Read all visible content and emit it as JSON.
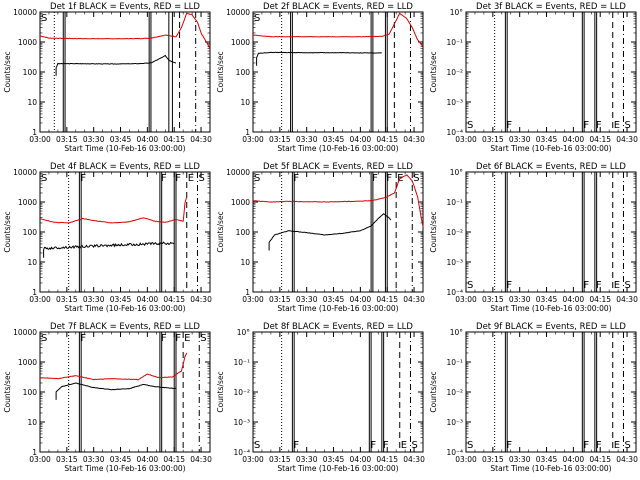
{
  "chart_data": {
    "type": "line",
    "xlabel": "Start Time (10-Feb-16 03:00:00)",
    "ylabel": "Counts/sec",
    "x_ticks": [
      "03:00",
      "03:15",
      "03:30",
      "03:45",
      "04:00",
      "04:15",
      "04:30"
    ],
    "x_range_minutes": [
      0,
      95
    ],
    "y_scale": "log",
    "active_y_ticks": [
      "1",
      "10",
      "100",
      "1000",
      "10000"
    ],
    "active_ylim": [
      1,
      10000
    ],
    "empty_y_ticks": [
      "10°",
      "10⁻¹",
      "10⁻²",
      "10⁻³",
      "10⁻⁴"
    ],
    "empty_ylim": [
      1,
      0.0001
    ],
    "series_colors": {
      "events": "#000000",
      "lld": "#dd0000"
    },
    "panels": [
      {
        "title": "Det 1f BLACK = Events, RED = LLD",
        "has_data": true,
        "markers": [
          {
            "t": 8,
            "style": "dotted"
          },
          {
            "t": 13,
            "style": "solid",
            "label": ""
          },
          {
            "t": 14,
            "style": "solid",
            "label": ""
          },
          {
            "t": 61,
            "style": "solid",
            "label": ""
          },
          {
            "t": 62,
            "style": "solid",
            "label": ""
          },
          {
            "t": 72,
            "style": "solid",
            "label": ""
          },
          {
            "t": 74,
            "style": "solid",
            "label": ""
          },
          {
            "t": 78,
            "style": "dashed",
            "label": ""
          },
          {
            "t": 87,
            "style": "dashdot",
            "label": ""
          }
        ],
        "corner_letter": "S",
        "events": {
          "start": 9,
          "end": 76,
          "level": 160,
          "segments": [
            [
              9,
              140
            ],
            [
              10,
              190
            ],
            [
              20,
              190
            ],
            [
              40,
              185
            ],
            [
              55,
              190
            ],
            [
              62,
              200
            ],
            [
              68,
              300
            ],
            [
              70,
              350
            ],
            [
              72,
              250
            ],
            [
              74,
              220
            ],
            [
              76,
              200
            ]
          ]
        },
        "lld": {
          "start": 0,
          "end": 95,
          "segments": [
            [
              0,
              1600
            ],
            [
              5,
              1350
            ],
            [
              20,
              1300
            ],
            [
              40,
              1280
            ],
            [
              55,
              1300
            ],
            [
              62,
              1350
            ],
            [
              70,
              1700
            ],
            [
              76,
              1500
            ],
            [
              79,
              3000
            ],
            [
              82,
              9000
            ],
            [
              85,
              8000
            ],
            [
              88,
              4500
            ],
            [
              90,
              2000
            ],
            [
              93,
              1000
            ],
            [
              95,
              600
            ]
          ]
        }
      },
      {
        "title": "Det 2f BLACK = Events, RED = LLD",
        "has_data": true,
        "markers": [
          {
            "t": 16,
            "style": "dotted"
          },
          {
            "t": 21,
            "style": "solid",
            "label": ""
          },
          {
            "t": 22,
            "style": "solid",
            "label": ""
          },
          {
            "t": 66,
            "style": "solid",
            "label": ""
          },
          {
            "t": 67,
            "style": "solid",
            "label": ""
          },
          {
            "t": 74,
            "style": "solid",
            "label": ""
          },
          {
            "t": 75,
            "style": "solid",
            "label": ""
          },
          {
            "t": 79,
            "style": "dashed",
            "label": ""
          },
          {
            "t": 88,
            "style": "dashdot",
            "label": ""
          }
        ],
        "corner_letter": "S",
        "events": {
          "start": 2,
          "end": 72,
          "segments": [
            [
              2,
              300
            ],
            [
              3,
              420
            ],
            [
              10,
              450
            ],
            [
              30,
              440
            ],
            [
              50,
              440
            ],
            [
              66,
              430
            ],
            [
              72,
              430
            ]
          ]
        },
        "lld": {
          "start": 0,
          "end": 95,
          "segments": [
            [
              0,
              1700
            ],
            [
              10,
              1500
            ],
            [
              40,
              1500
            ],
            [
              60,
              1500
            ],
            [
              72,
              1550
            ],
            [
              76,
              1800
            ],
            [
              79,
              4000
            ],
            [
              82,
              9000
            ],
            [
              86,
              6000
            ],
            [
              89,
              3000
            ],
            [
              92,
              1200
            ],
            [
              95,
              700
            ]
          ]
        }
      },
      {
        "title": "Det 3f BLACK = Events, RED = LLD",
        "has_data": false,
        "markers": [
          {
            "t": 16,
            "style": "dotted"
          },
          {
            "t": 22,
            "style": "solid",
            "label": "F"
          },
          {
            "t": 23,
            "style": "solid",
            "label": ""
          },
          {
            "t": 65,
            "style": "solid",
            "label": "F"
          },
          {
            "t": 66,
            "style": "solid",
            "label": ""
          },
          {
            "t": 72,
            "style": "solid",
            "label": "F"
          },
          {
            "t": 73,
            "style": "solid",
            "label": ""
          },
          {
            "t": 82,
            "style": "dashed",
            "label": "E"
          },
          {
            "t": 88,
            "style": "dashdot",
            "label": "S"
          }
        ],
        "corner_letter": "S"
      },
      {
        "title": "Det 4f BLACK = Events, RED = LLD",
        "has_data": true,
        "markers": [
          {
            "t": 16,
            "style": "dotted"
          },
          {
            "t": 22,
            "style": "solid",
            "label": "F"
          },
          {
            "t": 23,
            "style": "solid",
            "label": ""
          },
          {
            "t": 67,
            "style": "solid",
            "label": "F"
          },
          {
            "t": 68,
            "style": "solid",
            "label": ""
          },
          {
            "t": 75,
            "style": "solid",
            "label": "F"
          },
          {
            "t": 76,
            "style": "solid",
            "label": ""
          },
          {
            "t": 82,
            "style": "dashed",
            "label": "E"
          },
          {
            "t": 88,
            "style": "dashdot",
            "label": "S"
          }
        ],
        "corner_letter": "S",
        "events": {
          "start": 2,
          "end": 75,
          "noisy": true,
          "segments": [
            [
              2,
              28
            ],
            [
              20,
              32
            ],
            [
              40,
              36
            ],
            [
              60,
              40
            ],
            [
              70,
              42
            ],
            [
              75,
              40
            ]
          ]
        },
        "lld": {
          "start": 0,
          "end": 82,
          "segments": [
            [
              0,
              280
            ],
            [
              8,
              210
            ],
            [
              16,
              200
            ],
            [
              24,
              280
            ],
            [
              30,
              240
            ],
            [
              40,
              200
            ],
            [
              50,
              220
            ],
            [
              58,
              300
            ],
            [
              64,
              230
            ],
            [
              70,
              210
            ],
            [
              76,
              260
            ],
            [
              80,
              230
            ],
            [
              81,
              900
            ],
            [
              82,
              1500
            ]
          ]
        }
      },
      {
        "title": "Det 5f BLACK = Events, RED = LLD",
        "has_data": true,
        "markers": [
          {
            "t": 16,
            "style": "dotted"
          },
          {
            "t": 22,
            "style": "solid",
            "label": "F"
          },
          {
            "t": 23,
            "style": "solid",
            "label": ""
          },
          {
            "t": 66,
            "style": "solid",
            "label": "F"
          },
          {
            "t": 67,
            "style": "solid",
            "label": ""
          },
          {
            "t": 74,
            "style": "solid",
            "label": "F"
          },
          {
            "t": 75,
            "style": "solid",
            "label": ""
          },
          {
            "t": 80,
            "style": "dashed",
            "label": "E"
          },
          {
            "t": 89,
            "style": "dashdot",
            "label": "S"
          }
        ],
        "corner_letter": "S",
        "events": {
          "start": 9,
          "end": 77,
          "segments": [
            [
              9,
              45
            ],
            [
              12,
              80
            ],
            [
              20,
              110
            ],
            [
              30,
              95
            ],
            [
              40,
              80
            ],
            [
              50,
              90
            ],
            [
              60,
              110
            ],
            [
              66,
              160
            ],
            [
              70,
              280
            ],
            [
              73,
              400
            ],
            [
              76,
              300
            ],
            [
              77,
              250
            ]
          ]
        },
        "lld": {
          "start": 0,
          "end": 95,
          "segments": [
            [
              0,
              1100
            ],
            [
              10,
              1000
            ],
            [
              20,
              1050
            ],
            [
              40,
              1000
            ],
            [
              55,
              1050
            ],
            [
              66,
              1100
            ],
            [
              74,
              1400
            ],
            [
              79,
              2000
            ],
            [
              82,
              6000
            ],
            [
              86,
              8000
            ],
            [
              89,
              5000
            ],
            [
              92,
              1500
            ],
            [
              94,
              300
            ],
            [
              95,
              150
            ]
          ]
        }
      },
      {
        "title": "Det 6f BLACK = Events, RED = LLD",
        "has_data": false,
        "markers": [
          {
            "t": 16,
            "style": "dotted"
          },
          {
            "t": 22,
            "style": "solid",
            "label": "F"
          },
          {
            "t": 23,
            "style": "solid",
            "label": ""
          },
          {
            "t": 65,
            "style": "solid",
            "label": "F"
          },
          {
            "t": 66,
            "style": "solid",
            "label": ""
          },
          {
            "t": 72,
            "style": "solid",
            "label": "F"
          },
          {
            "t": 73,
            "style": "solid",
            "label": ""
          },
          {
            "t": 82,
            "style": "dashed",
            "label": "E"
          },
          {
            "t": 88,
            "style": "dashdot",
            "label": "S"
          }
        ],
        "corner_letter": "S"
      },
      {
        "title": "Det 7f BLACK = Events, RED = LLD",
        "has_data": true,
        "markers": [
          {
            "t": 16,
            "style": "dotted"
          },
          {
            "t": 22,
            "style": "solid",
            "label": "F"
          },
          {
            "t": 23,
            "style": "solid",
            "label": ""
          },
          {
            "t": 67,
            "style": "solid",
            "label": "F"
          },
          {
            "t": 68,
            "style": "solid",
            "label": ""
          },
          {
            "t": 75,
            "style": "solid",
            "label": "F"
          },
          {
            "t": 76,
            "style": "solid",
            "label": ""
          },
          {
            "t": 80,
            "style": "dashed",
            "label": "E"
          },
          {
            "t": 89,
            "style": "dashdot",
            "label": "S"
          }
        ],
        "corner_letter": "S",
        "events": {
          "start": 9,
          "end": 76,
          "segments": [
            [
              9,
              100
            ],
            [
              12,
              150
            ],
            [
              20,
              200
            ],
            [
              30,
              140
            ],
            [
              40,
              120
            ],
            [
              50,
              130
            ],
            [
              58,
              180
            ],
            [
              64,
              150
            ],
            [
              70,
              140
            ],
            [
              76,
              130
            ]
          ]
        },
        "lld": {
          "start": 0,
          "end": 82,
          "segments": [
            [
              0,
              300
            ],
            [
              10,
              280
            ],
            [
              20,
              350
            ],
            [
              30,
              260
            ],
            [
              40,
              280
            ],
            [
              55,
              260
            ],
            [
              60,
              400
            ],
            [
              66,
              300
            ],
            [
              74,
              320
            ],
            [
              79,
              500
            ],
            [
              81,
              1500
            ],
            [
              82,
              2000
            ]
          ]
        }
      },
      {
        "title": "Det 8f BLACK = Events, RED = LLD",
        "has_data": false,
        "markers": [
          {
            "t": 16,
            "style": "dotted"
          },
          {
            "t": 22,
            "style": "solid",
            "label": "F"
          },
          {
            "t": 23,
            "style": "solid",
            "label": ""
          },
          {
            "t": 65,
            "style": "solid",
            "label": "F"
          },
          {
            "t": 66,
            "style": "solid",
            "label": ""
          },
          {
            "t": 72,
            "style": "solid",
            "label": "F"
          },
          {
            "t": 73,
            "style": "solid",
            "label": ""
          },
          {
            "t": 82,
            "style": "dashed",
            "label": "E"
          },
          {
            "t": 88,
            "style": "dashdot",
            "label": "S"
          }
        ],
        "corner_letter": "S"
      },
      {
        "title": "Det 9f BLACK = Events, RED = LLD",
        "has_data": false,
        "markers": [
          {
            "t": 16,
            "style": "dotted"
          },
          {
            "t": 22,
            "style": "solid",
            "label": "F"
          },
          {
            "t": 23,
            "style": "solid",
            "label": ""
          },
          {
            "t": 65,
            "style": "solid",
            "label": "F"
          },
          {
            "t": 66,
            "style": "solid",
            "label": ""
          },
          {
            "t": 72,
            "style": "solid",
            "label": "F"
          },
          {
            "t": 73,
            "style": "solid",
            "label": ""
          },
          {
            "t": 82,
            "style": "dashed",
            "label": "E"
          },
          {
            "t": 88,
            "style": "dashdot",
            "label": "S"
          }
        ],
        "corner_letter": "S"
      }
    ]
  }
}
